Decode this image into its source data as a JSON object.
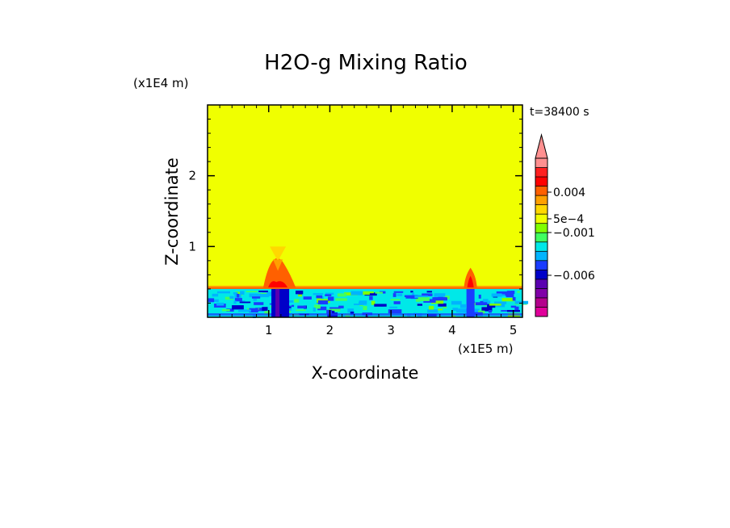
{
  "chart_data": {
    "type": "heatmap",
    "title": "H2O-g Mixing Ratio",
    "xlabel": "X-coordinate",
    "ylabel": "Z-coordinate",
    "x_scale_label": "(x1E5 m)",
    "y_scale_label": "(x1E4 m)",
    "time_label": "t=38400 s",
    "xlim": [
      0,
      5.15
    ],
    "ylim": [
      0,
      3.0
    ],
    "x_ticks": [
      "1",
      "2",
      "3",
      "4",
      "5"
    ],
    "y_ticks": [
      "1",
      "2"
    ],
    "x_tick_values": [
      1,
      2,
      3,
      4,
      5
    ],
    "y_tick_values": [
      1,
      2
    ],
    "colorbar": {
      "labels": [
        "0.004",
        "5e-4",
        "-0.001",
        "-0.006"
      ],
      "label_values": [
        0.004,
        0.0005,
        -0.001,
        -0.006
      ],
      "colors": [
        "#e0009a",
        "#b4008c",
        "#8000a8",
        "#5a00b0",
        "#0000c8",
        "#1a3cff",
        "#00b4ff",
        "#00e8e8",
        "#40ff60",
        "#80ff00",
        "#f0ff00",
        "#ffd800",
        "#ffa000",
        "#ff6000",
        "#ff0000",
        "#ff2020",
        "#ff9090"
      ]
    },
    "background_value_color": "#f0ff00",
    "features": {
      "boundary_layer_top": 0.4,
      "plumes": [
        {
          "x": 1.15,
          "z_top": 1.0
        },
        {
          "x": 4.3,
          "z_top": 0.7
        }
      ]
    }
  }
}
